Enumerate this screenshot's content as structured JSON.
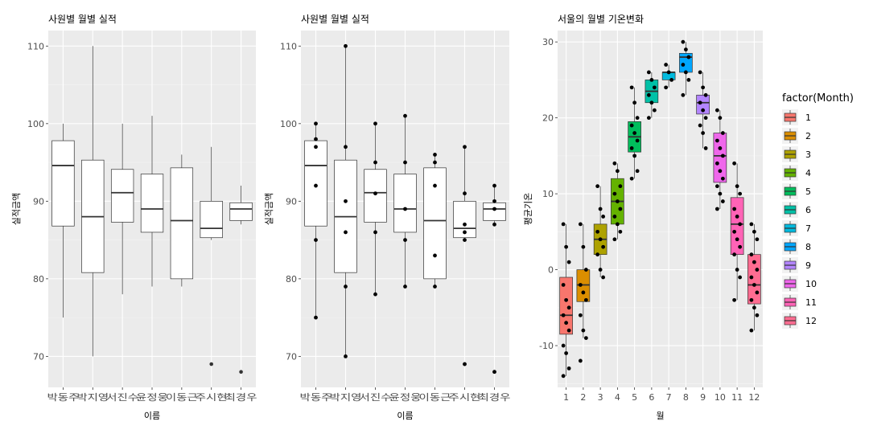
{
  "chart_data": [
    {
      "type": "boxplot",
      "title": "사원별 월별 실적",
      "xlabel": "이름",
      "ylabel": "실적금액",
      "ylim": [
        66,
        112
      ],
      "yticks": [
        70,
        80,
        90,
        100,
        110
      ],
      "grid": true,
      "categories": [
        "박동주",
        "박지영",
        "서진수",
        "윤정웅",
        "이동근",
        "주시현",
        "최경우"
      ],
      "boxes": [
        {
          "name": "박동주",
          "lower": 75,
          "q1": 86.8,
          "median": 94.6,
          "q3": 97.8,
          "upper": 100,
          "outliers": []
        },
        {
          "name": "박지영",
          "lower": 70,
          "q1": 80.8,
          "median": 88,
          "q3": 95.3,
          "upper": 110,
          "outliers": []
        },
        {
          "name": "서진수",
          "lower": 78,
          "q1": 87.3,
          "median": 91.1,
          "q3": 94.1,
          "upper": 100,
          "outliers": []
        },
        {
          "name": "윤정웅",
          "lower": 79,
          "q1": 86,
          "median": 89,
          "q3": 93.5,
          "upper": 101,
          "outliers": []
        },
        {
          "name": "이동근",
          "lower": 79,
          "q1": 80,
          "median": 87.5,
          "q3": 94.3,
          "upper": 96,
          "outliers": []
        },
        {
          "name": "주시현",
          "lower": 85,
          "q1": 85.3,
          "median": 86.5,
          "q3": 90,
          "upper": 97,
          "outliers": [
            69
          ]
        },
        {
          "name": "최경우",
          "lower": 87,
          "q1": 87.5,
          "median": 89,
          "q3": 89.8,
          "upper": 92,
          "outliers": [
            68
          ]
        }
      ]
    },
    {
      "type": "boxplot",
      "title": "사원별 월별 실적",
      "xlabel": "이름",
      "ylabel": "실적금액",
      "ylim": [
        66,
        112
      ],
      "yticks": [
        70,
        80,
        90,
        100,
        110
      ],
      "grid": true,
      "categories": [
        "박동주",
        "박지영",
        "서진수",
        "윤정웅",
        "이동근",
        "주시현",
        "최경우"
      ],
      "boxes": [
        {
          "name": "박동주",
          "lower": 75,
          "q1": 86.8,
          "median": 94.6,
          "q3": 97.8,
          "upper": 100,
          "outliers": []
        },
        {
          "name": "박지영",
          "lower": 70,
          "q1": 80.8,
          "median": 88,
          "q3": 95.3,
          "upper": 110,
          "outliers": []
        },
        {
          "name": "서진수",
          "lower": 78,
          "q1": 87.3,
          "median": 91.1,
          "q3": 94.1,
          "upper": 100,
          "outliers": []
        },
        {
          "name": "윤정웅",
          "lower": 79,
          "q1": 86,
          "median": 89,
          "q3": 93.5,
          "upper": 101,
          "outliers": []
        },
        {
          "name": "이동근",
          "lower": 79,
          "q1": 80,
          "median": 87.5,
          "q3": 94.3,
          "upper": 96,
          "outliers": []
        },
        {
          "name": "주시현",
          "lower": 85,
          "q1": 85.3,
          "median": 86.5,
          "q3": 90,
          "upper": 97,
          "outliers": [
            69
          ]
        },
        {
          "name": "최경우",
          "lower": 87,
          "q1": 87.5,
          "median": 89,
          "q3": 89.8,
          "upper": 92,
          "outliers": [
            68
          ]
        }
      ],
      "points": [
        [
          100,
          98,
          97,
          92,
          85,
          75
        ],
        [
          110,
          97,
          90,
          86,
          79,
          70
        ],
        [
          100,
          95,
          91,
          86,
          78
        ],
        [
          101,
          95,
          89,
          85,
          79
        ],
        [
          96,
          95,
          92,
          83,
          79
        ],
        [
          97,
          91,
          87,
          86,
          85,
          69
        ],
        [
          92,
          90,
          89,
          87,
          68
        ]
      ]
    },
    {
      "type": "boxplot",
      "title": "서울의 월별 기온변화",
      "xlabel": "월",
      "ylabel": "평균기온",
      "ylim": [
        -15.5,
        31.5
      ],
      "yticks": [
        -10,
        0,
        10,
        20,
        30
      ],
      "grid": true,
      "categories": [
        "1",
        "2",
        "3",
        "4",
        "5",
        "6",
        "7",
        "8",
        "9",
        "10",
        "11",
        "12"
      ],
      "legend": {
        "title": "factor(Month)",
        "position": "right"
      },
      "boxes": [
        {
          "name": "1",
          "color": "#F8766D",
          "lower": -14,
          "q1": -8.5,
          "median": -6,
          "q3": -1,
          "upper": 6
        },
        {
          "name": "2",
          "color": "#DB8E00",
          "lower": -9,
          "q1": -4.2,
          "median": -2,
          "q3": 0,
          "upper": 6
        },
        {
          "name": "3",
          "color": "#AEA200",
          "lower": -1,
          "q1": 2,
          "median": 4,
          "q3": 6,
          "upper": 11
        },
        {
          "name": "4",
          "color": "#64B200",
          "lower": 4,
          "q1": 6,
          "median": 9,
          "q3": 12,
          "upper": 14
        },
        {
          "name": "5",
          "color": "#00BD5C",
          "lower": 12,
          "q1": 15.5,
          "median": 17.5,
          "q3": 19.5,
          "upper": 24
        },
        {
          "name": "6",
          "color": "#00C1A7",
          "lower": 20,
          "q1": 22,
          "median": 23.5,
          "q3": 25,
          "upper": 26
        },
        {
          "name": "7",
          "color": "#00BADE",
          "lower": 24,
          "q1": 25,
          "median": 26,
          "q3": 26,
          "upper": 27
        },
        {
          "name": "8",
          "color": "#00A6FF",
          "lower": 23,
          "q1": 26,
          "median": 28,
          "q3": 28.5,
          "upper": 30
        },
        {
          "name": "9",
          "color": "#B385FF",
          "lower": 16,
          "q1": 20.5,
          "median": 22,
          "q3": 23,
          "upper": 26
        },
        {
          "name": "10",
          "color": "#EF67EB",
          "lower": 8,
          "q1": 11.5,
          "median": 15,
          "q3": 18,
          "upper": 21
        },
        {
          "name": "11",
          "color": "#FF63B6",
          "lower": -4,
          "q1": 2,
          "median": 6,
          "q3": 9.5,
          "upper": 14
        },
        {
          "name": "12",
          "color": "#FF6C91",
          "lower": -8,
          "q1": -4.5,
          "median": -2,
          "q3": 2,
          "upper": 6
        }
      ],
      "points": [
        [
          6,
          3,
          1,
          -2,
          -4,
          -5,
          -6,
          -7,
          -8,
          -10,
          -11,
          -13,
          -14
        ],
        [
          6,
          3,
          0,
          -2,
          -3,
          -4,
          -6,
          -8,
          -9,
          -12
        ],
        [
          11,
          8,
          7,
          5,
          4,
          3,
          2,
          0,
          -1
        ],
        [
          14,
          13,
          11,
          10,
          9,
          8,
          7,
          6,
          5,
          4
        ],
        [
          24,
          22,
          20,
          19,
          18,
          17,
          16,
          15,
          13,
          12
        ],
        [
          26,
          25,
          24,
          23,
          22,
          21,
          20
        ],
        [
          27,
          26,
          25,
          24
        ],
        [
          30,
          29,
          28,
          27,
          26,
          25,
          23
        ],
        [
          26,
          24,
          23,
          22,
          21,
          20,
          19,
          18,
          16
        ],
        [
          21,
          20,
          18,
          17,
          16,
          15,
          14,
          13,
          12,
          11,
          10,
          9,
          8
        ],
        [
          14,
          11,
          10,
          8,
          7,
          6,
          5,
          4,
          3,
          2,
          0,
          -1,
          -4
        ],
        [
          6,
          5,
          4,
          2,
          1,
          0,
          -1,
          -2,
          -3,
          -4,
          -5,
          -6,
          -8
        ]
      ]
    }
  ]
}
